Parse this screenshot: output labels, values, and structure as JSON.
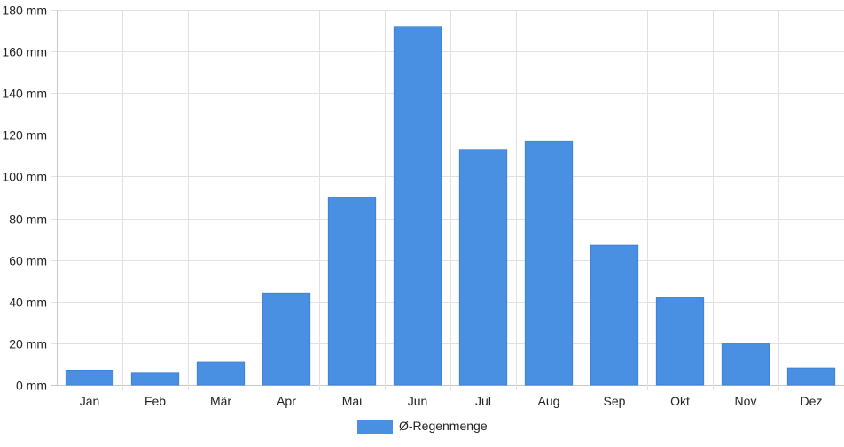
{
  "chart_data": {
    "type": "bar",
    "categories": [
      "Jan",
      "Feb",
      "Mär",
      "Apr",
      "Mai",
      "Jun",
      "Jul",
      "Aug",
      "Sep",
      "Okt",
      "Nov",
      "Dez"
    ],
    "series": [
      {
        "name": "Ø-Regenmenge",
        "values": [
          7,
          6,
          11,
          44,
          90,
          172,
          113,
          117,
          67,
          42,
          20,
          8
        ],
        "color": "#4a90e2"
      }
    ],
    "ylim": [
      0,
      180
    ],
    "yticks": [
      0,
      20,
      40,
      60,
      80,
      100,
      120,
      140,
      160,
      180
    ],
    "ytick_labels": [
      "0 mm",
      "20 mm",
      "40 mm",
      "60 mm",
      "80 mm",
      "100 mm",
      "120 mm",
      "140 mm",
      "160 mm",
      "180 mm"
    ],
    "grid": true,
    "legend_position": "bottom-center",
    "colors": {
      "grid": "#e0e0e0",
      "axis": "#c8c8c8",
      "bar": "#4a90e2"
    }
  }
}
